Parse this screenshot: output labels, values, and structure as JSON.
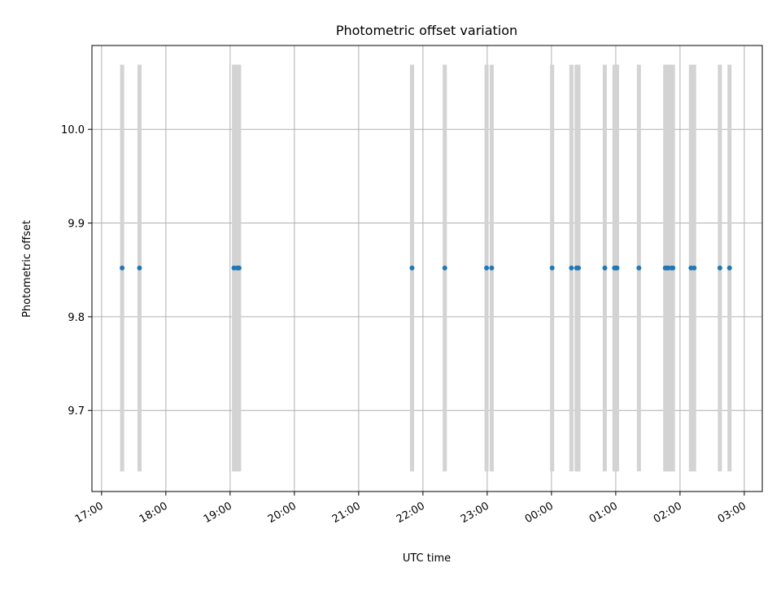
{
  "chart_data": {
    "type": "scatter",
    "title": "Photometric offset variation",
    "xlabel": "UTC time",
    "ylabel": "Photometric offset",
    "x_type": "time",
    "x_unit": "hours since 00:00 UTC",
    "xlim": [
      -7.15,
      3.28
    ],
    "ylim": [
      9.6135,
      10.0895
    ],
    "x_ticks": [
      {
        "value": -7,
        "label": "17:00"
      },
      {
        "value": -6,
        "label": "18:00"
      },
      {
        "value": -5,
        "label": "19:00"
      },
      {
        "value": -4,
        "label": "20:00"
      },
      {
        "value": -3,
        "label": "21:00"
      },
      {
        "value": -2,
        "label": "22:00"
      },
      {
        "value": -1,
        "label": "23:00"
      },
      {
        "value": 0,
        "label": "00:00"
      },
      {
        "value": 1,
        "label": "01:00"
      },
      {
        "value": 2,
        "label": "02:00"
      },
      {
        "value": 3,
        "label": "03:00"
      }
    ],
    "y_ticks": [
      {
        "value": 9.7,
        "label": "9.7"
      },
      {
        "value": 9.8,
        "label": "9.8"
      },
      {
        "value": 9.9,
        "label": "9.9"
      },
      {
        "value": 10.0,
        "label": "10.0"
      }
    ],
    "grid": true,
    "x_tick_rotation_deg": 30,
    "offset": 9.852,
    "band": {
      "low": 9.635,
      "high": 10.069
    },
    "x": [
      -6.68,
      -6.41,
      -4.94,
      -4.89,
      -4.86,
      -2.17,
      -1.66,
      -1.01,
      -0.93,
      0.01,
      0.31,
      0.39,
      0.42,
      0.83,
      0.98,
      1.0,
      1.02,
      1.36,
      1.77,
      1.8,
      1.82,
      1.87,
      1.89,
      2.17,
      2.22,
      2.62,
      2.77
    ],
    "colors": {
      "point": "#1f77b4",
      "band": "#d3d3d3",
      "grid": "#b0b0b0",
      "axis": "#000000"
    }
  }
}
